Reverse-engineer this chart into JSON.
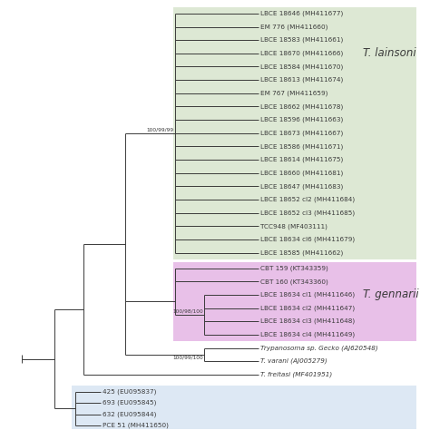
{
  "fig_bg": "#ffffff",
  "lainsoni_bg": "#dde8d4",
  "gennarii_bg": "#e8c0e8",
  "outgroup_bg": "#dde8f4",
  "line_color": "#3a3a3a",
  "label_color": "#3a3a3a",
  "bootstrap_color": "#3a3a3a",
  "lainsoni_taxa": [
    "LBCE 18646 (MH411677)",
    "EM 776 (MH411660)",
    "LBCE 18583 (MH411661)",
    "LBCE 18670 (MH411666)",
    "LBCE 18584 (MH411670)",
    "LBCE 18613 (MH411674)",
    "EM 767 (MH411659)",
    "LBCE 18662 (MH411678)",
    "LBCE 18596 (MH411663)",
    "LBCE 18673 (MH411667)",
    "LBCE 18586 (MH411671)",
    "LBCE 18614 (MH411675)",
    "LBCE 18660 (MH411681)",
    "LBCE 18647 (MH411683)",
    "LBCE 18652 cl2 (MH411684)",
    "LBCE 18652 cl3 (MH411685)",
    "TCC948 (MF403111)",
    "LBCE 18634 cl6 (MH411679)",
    "LBCE 18585 (MH411662)"
  ],
  "gennarii_taxa": [
    "CBT 159 (KT343359)",
    "CBT 160 (KT343360)",
    "LBCE 18634 cl1 (MH411646)",
    "LBCE 18634 cl2 (MH411647)",
    "LBCE 18634 cl3 (MH411648)",
    "LBCE 18634 cl4 (MH411649)"
  ],
  "outgroup_taxa": [
    "425 (EU095837)",
    "693 (EU095845)",
    "632 (EU095844)",
    "PCE 51 (MH411650)"
  ],
  "bootstrap_lainsoni": "100/99/99",
  "bootstrap_gennarii": "100/98/100",
  "bootstrap_varani": "100/99/100",
  "label_lainsoni": "T. lainsoni",
  "label_gennarii": "T. gennarii",
  "taxa_trypanosoma": "Trypanosoma sp. Gecko (AJ620548)",
  "taxa_varani": "T. varani (AJ005279)",
  "taxa_freitasi": "T. freitasi (MF401951)",
  "fs_taxa": 5.2,
  "fs_bootstrap": 4.2,
  "fs_clade": 8.5,
  "lw": 0.7
}
